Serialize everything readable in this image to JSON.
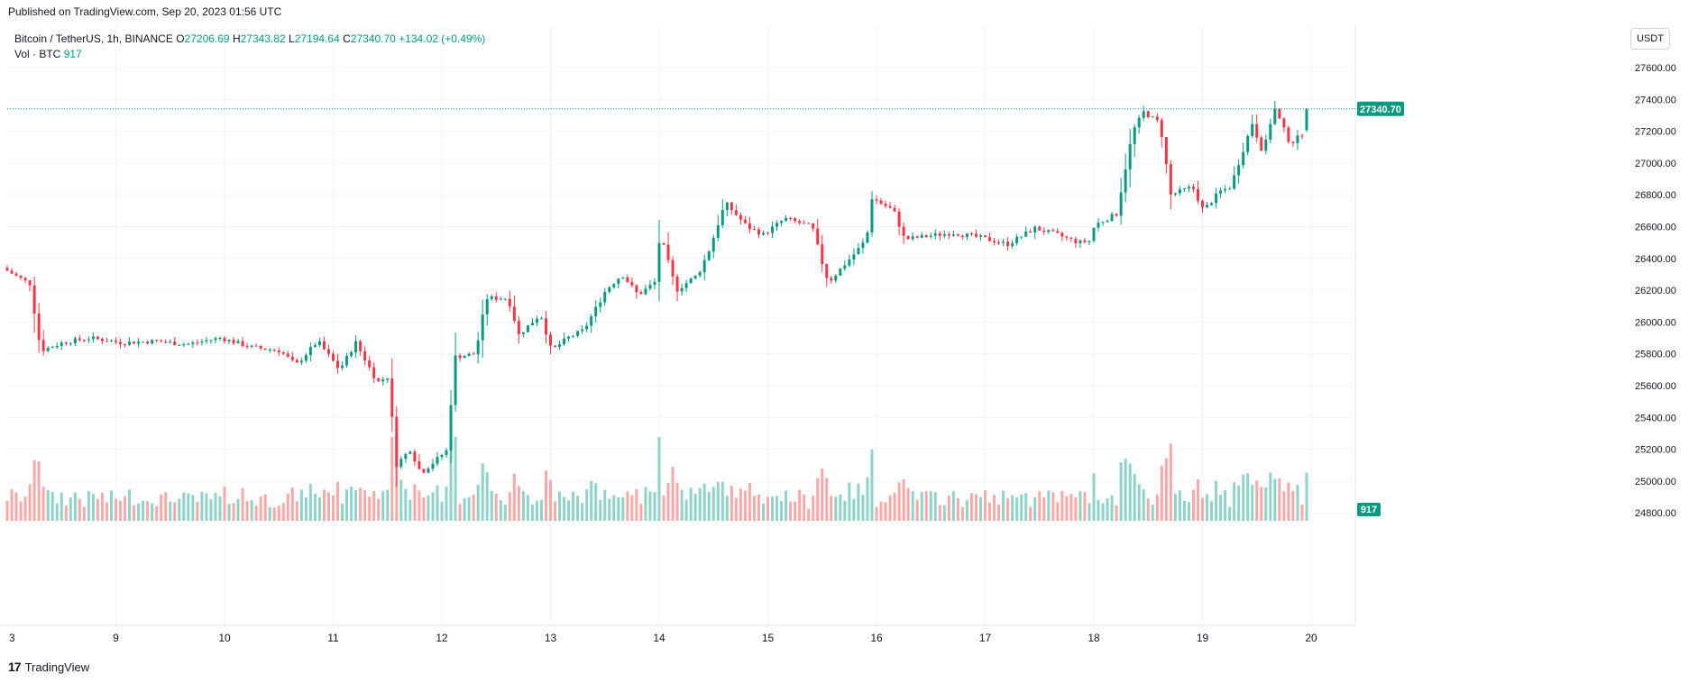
{
  "header": {
    "published": "Published on TradingView.com, Sep 20, 2023 01:56 UTC"
  },
  "legend": {
    "symbol": "Bitcoin / TetherUS, 1h, BINANCE",
    "open_label": "O",
    "open": "27206.69",
    "high_label": "H",
    "high": "27343.82",
    "low_label": "L",
    "low": "27194.64",
    "close_label": "C",
    "close": "27340.70",
    "change": "+134.02 (+0.49%)",
    "vol_label": "Vol · BTC",
    "vol_value": "917"
  },
  "currency_button": "USDT",
  "footer": {
    "brand": "TradingView"
  },
  "colors": {
    "up": "#089981",
    "down": "#f23645",
    "vol_up": "#8fd3c8",
    "vol_down": "#f7a9a7",
    "grid": "#f0f3fa",
    "text": "#131722"
  },
  "chart_data": {
    "type": "candlestick",
    "interval": "1h",
    "y_axis": {
      "min": 24700,
      "max": 27700,
      "ticks": [
        "27600.00",
        "27400.00",
        "27200.00",
        "27000.00",
        "26800.00",
        "26600.00",
        "26400.00",
        "26200.00",
        "26000.00",
        "25800.00",
        "25600.00",
        "25400.00",
        "25200.00",
        "25000.00",
        "24800.00"
      ],
      "position": "right"
    },
    "x_axis": {
      "ticks": [
        "3",
        "9",
        "10",
        "11",
        "12",
        "13",
        "14",
        "15",
        "16",
        "17",
        "18",
        "19",
        "20"
      ],
      "start_day": 8.0,
      "end_day": 20.1
    },
    "last_price_label": "27340.70",
    "last_volume_label": "917",
    "anchors": [
      [
        8.0,
        26340
      ],
      [
        8.25,
        26240
      ],
      [
        8.35,
        25820
      ],
      [
        8.55,
        25870
      ],
      [
        8.8,
        25900
      ],
      [
        9.1,
        25870
      ],
      [
        9.4,
        25880
      ],
      [
        9.7,
        25860
      ],
      [
        10.0,
        25900
      ],
      [
        10.3,
        25840
      ],
      [
        10.55,
        25820
      ],
      [
        10.7,
        25730
      ],
      [
        10.9,
        25880
      ],
      [
        11.1,
        25700
      ],
      [
        11.25,
        25870
      ],
      [
        11.45,
        25620
      ],
      [
        11.55,
        25660
      ],
      [
        11.62,
        25100
      ],
      [
        11.75,
        25200
      ],
      [
        11.85,
        25050
      ],
      [
        12.1,
        25200
      ],
      [
        12.15,
        25780
      ],
      [
        12.35,
        25800
      ],
      [
        12.45,
        26150
      ],
      [
        12.65,
        26150
      ],
      [
        12.75,
        25920
      ],
      [
        12.95,
        26050
      ],
      [
        13.05,
        25820
      ],
      [
        13.2,
        25900
      ],
      [
        13.35,
        25950
      ],
      [
        13.55,
        26200
      ],
      [
        13.7,
        26300
      ],
      [
        13.85,
        26170
      ],
      [
        14.0,
        26250
      ],
      [
        14.05,
        26550
      ],
      [
        14.2,
        26200
      ],
      [
        14.4,
        26300
      ],
      [
        14.5,
        26450
      ],
      [
        14.65,
        26750
      ],
      [
        14.85,
        26600
      ],
      [
        15.0,
        26550
      ],
      [
        15.2,
        26650
      ],
      [
        15.45,
        26600
      ],
      [
        15.55,
        26350
      ],
      [
        15.6,
        26250
      ],
      [
        15.8,
        26400
      ],
      [
        15.95,
        26520
      ],
      [
        16.0,
        26780
      ],
      [
        16.2,
        26700
      ],
      [
        16.3,
        26520
      ],
      [
        16.5,
        26540
      ],
      [
        16.75,
        26560
      ],
      [
        17.0,
        26530
      ],
      [
        17.25,
        26490
      ],
      [
        17.5,
        26590
      ],
      [
        17.7,
        26550
      ],
      [
        17.9,
        26500
      ],
      [
        18.0,
        26510
      ],
      [
        18.05,
        26610
      ],
      [
        18.25,
        26680
      ],
      [
        18.4,
        27200
      ],
      [
        18.5,
        27320
      ],
      [
        18.65,
        27250
      ],
      [
        18.75,
        26800
      ],
      [
        18.95,
        26850
      ],
      [
        19.05,
        26700
      ],
      [
        19.2,
        26820
      ],
      [
        19.3,
        26850
      ],
      [
        19.45,
        27150
      ],
      [
        19.5,
        27250
      ],
      [
        19.6,
        27060
      ],
      [
        19.7,
        27350
      ],
      [
        19.85,
        27120
      ],
      [
        20.0,
        27206
      ]
    ],
    "last_candle": {
      "open": 27206.69,
      "high": 27343.82,
      "low": 27194.64,
      "close": 27340.7,
      "volume": 917
    }
  }
}
